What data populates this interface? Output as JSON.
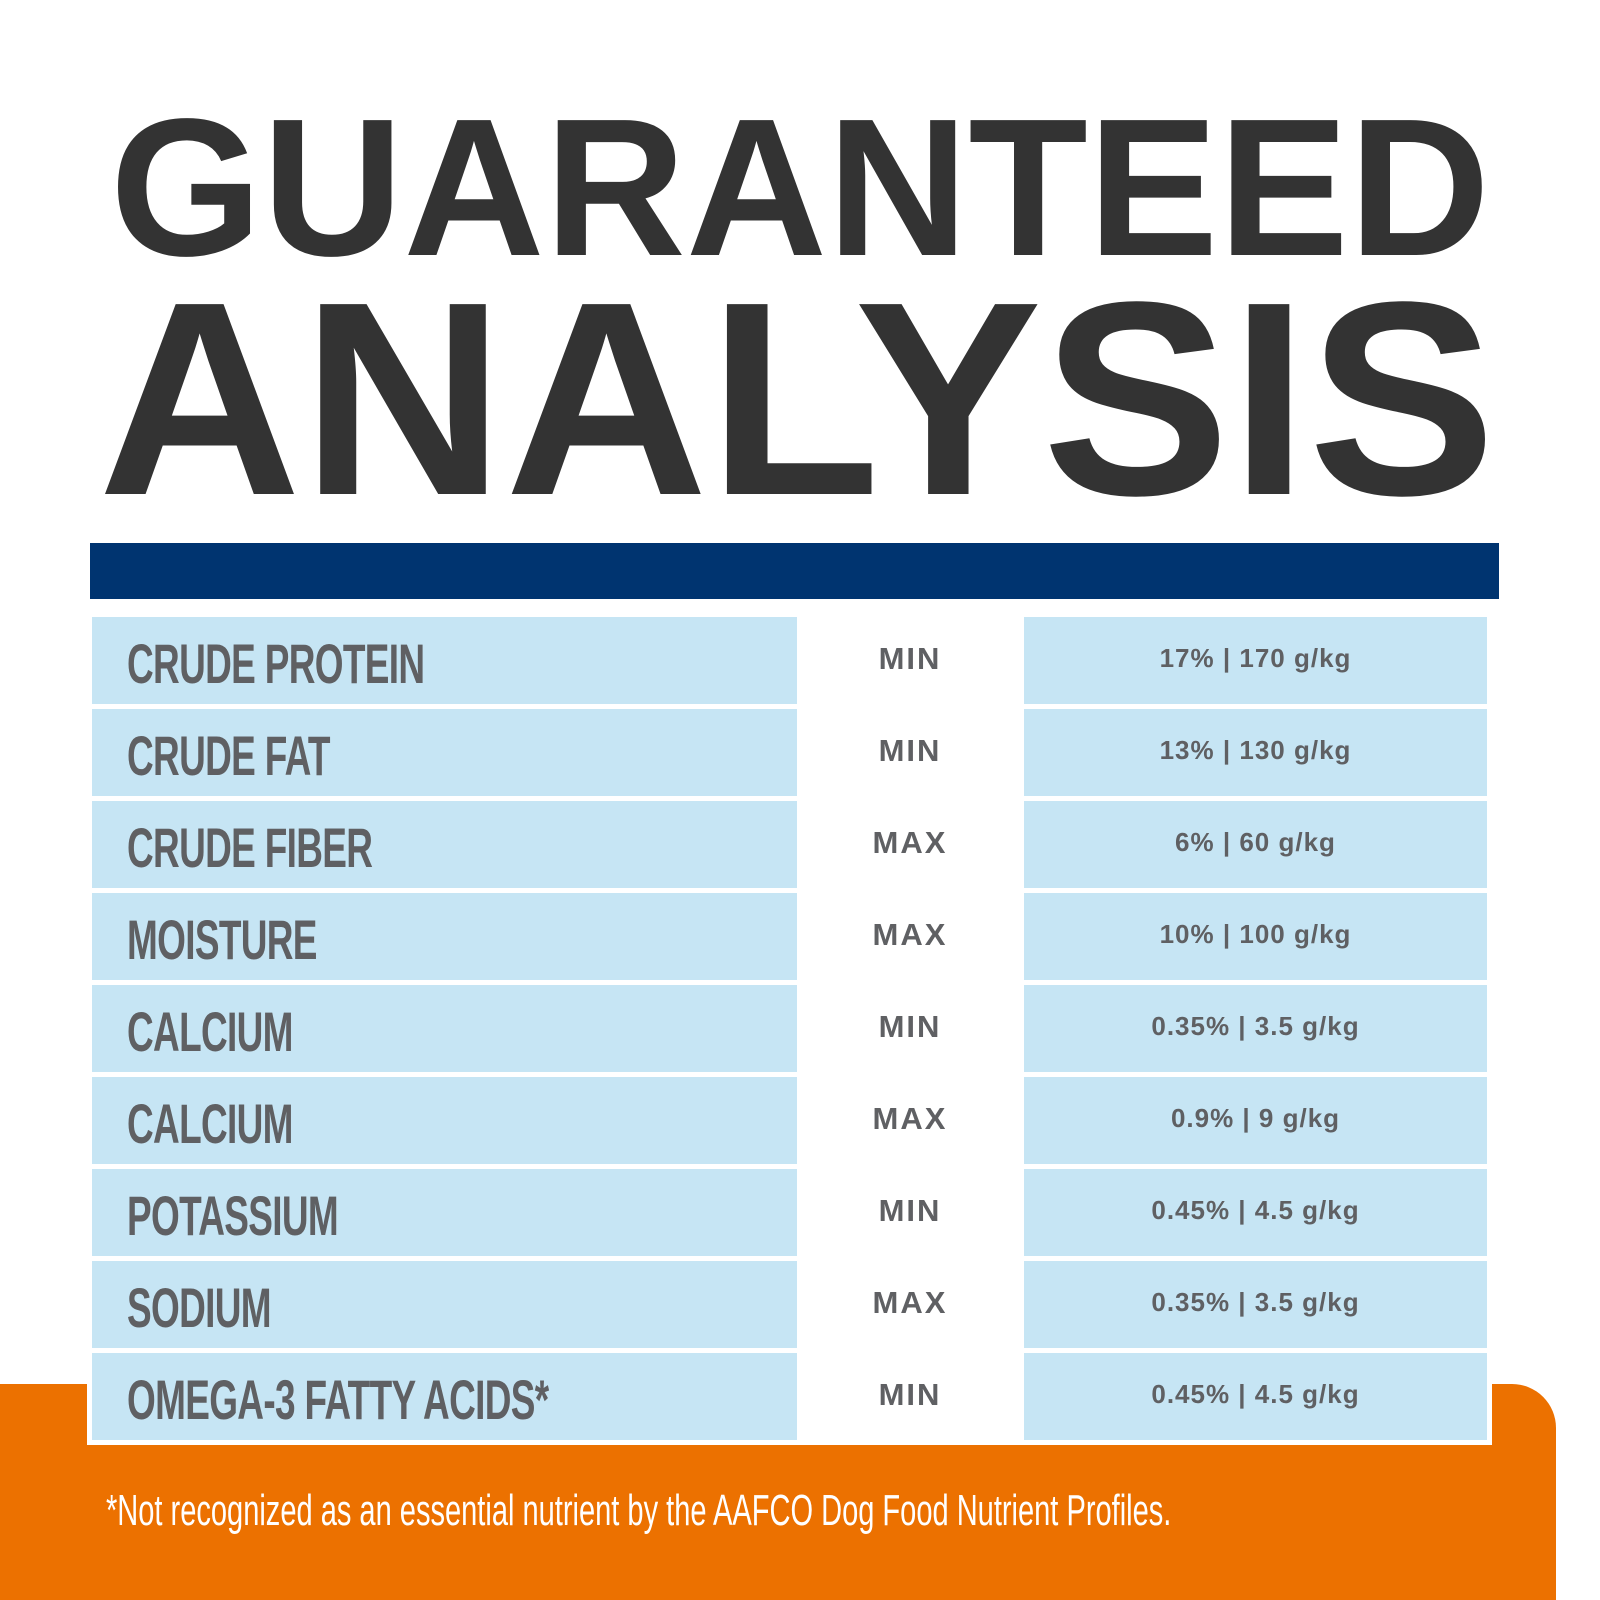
{
  "title": {
    "line1": "GUARANTEED",
    "line2": "ANALYSIS"
  },
  "colors": {
    "title": "#333333",
    "bar": "#003470",
    "cell": "#c6e5f4",
    "text": "#5f6063",
    "footer": "#ec7100"
  },
  "rows": [
    {
      "name": "CRUDE PROTEIN",
      "type": "MIN",
      "value": "17% | 170 g/kg"
    },
    {
      "name": "CRUDE FAT",
      "type": "MIN",
      "value": "13% | 130 g/kg"
    },
    {
      "name": "CRUDE FIBER",
      "type": "MAX",
      "value": "6% | 60 g/kg"
    },
    {
      "name": "MOISTURE",
      "type": "MAX",
      "value": "10% | 100 g/kg"
    },
    {
      "name": "CALCIUM",
      "type": "MIN",
      "value": "0.35% | 3.5 g/kg"
    },
    {
      "name": "CALCIUM",
      "type": "MAX",
      "value": "0.9% | 9 g/kg"
    },
    {
      "name": "POTASSIUM",
      "type": "MIN",
      "value": "0.45% | 4.5 g/kg"
    },
    {
      "name": "SODIUM",
      "type": "MAX",
      "value": "0.35% | 3.5 g/kg"
    },
    {
      "name": "OMEGA-3 FATTY ACIDS*",
      "type": "MIN",
      "value": "0.45% | 4.5 g/kg"
    }
  ],
  "footnote": "*Not recognized as an essential nutrient by the AAFCO Dog Food Nutrient Profiles."
}
